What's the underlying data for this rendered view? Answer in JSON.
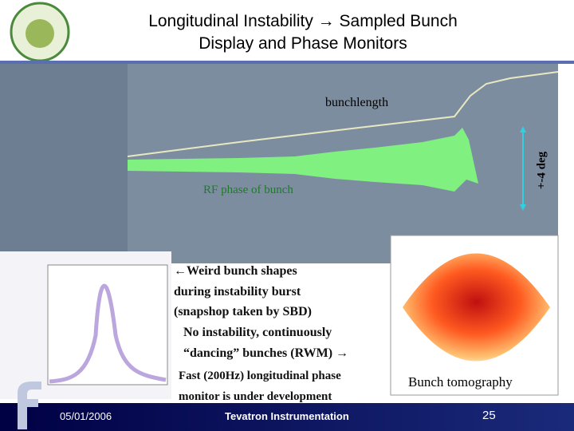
{
  "header": {
    "title": [
      "Longitudinal Instability → Sampled Bunch",
      "Display and Phase Monitors"
    ]
  },
  "annotations": {
    "bunchlength": "bunchlength",
    "rf_phase": "RF phase of bunch",
    "range": "+-4 deg"
  },
  "bullets": [
    [
      "←Weird bunch shapes",
      "during  instability burst",
      "(snapshop taken by SBD)"
    ],
    [
      "No instability, continuously",
      "“dancing” bunches (RWM) →"
    ],
    [
      "Fast (200Hz) longitudinal phase",
      "monitor is under development"
    ]
  ],
  "tomography": {
    "caption": "Bunch tomography"
  },
  "footer": {
    "date": "05/01/2006",
    "title": "Tevatron Instrumentation",
    "page": "25"
  }
}
